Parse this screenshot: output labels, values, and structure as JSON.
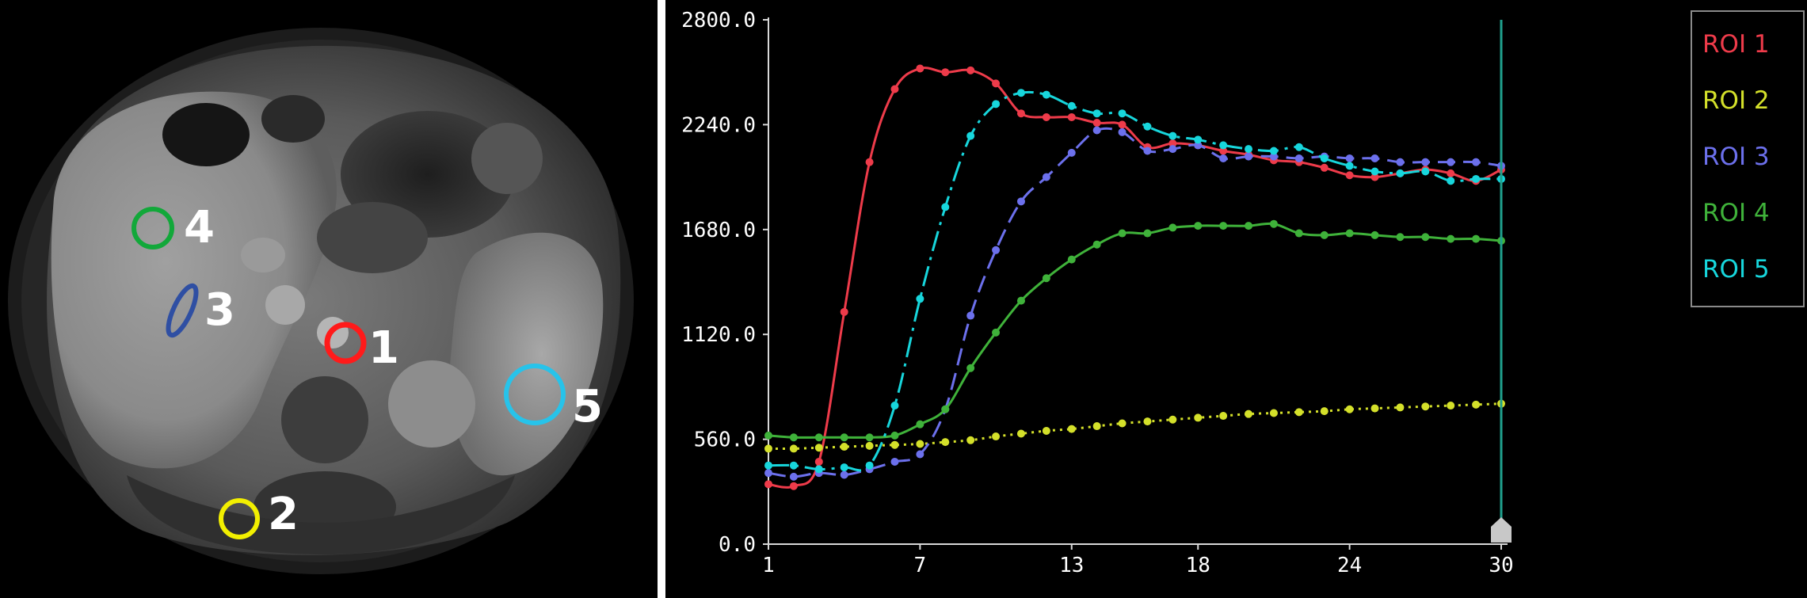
{
  "rois": [
    {
      "id": "roi-1",
      "number": "1",
      "color": "#ff1a1a"
    },
    {
      "id": "roi-2",
      "number": "2",
      "color": "#f2ef00"
    },
    {
      "id": "roi-3",
      "number": "3",
      "color": "#2f4fa3"
    },
    {
      "id": "roi-4",
      "number": "4",
      "color": "#12a83a"
    },
    {
      "id": "roi-5",
      "number": "5",
      "color": "#27c3ea"
    }
  ],
  "chart_data": {
    "type": "line",
    "title": "",
    "xlabel": "",
    "ylabel": "",
    "xlim": [
      1,
      30
    ],
    "ylim": [
      0,
      2800
    ],
    "x_ticks": [
      "1",
      "7",
      "13",
      "18",
      "24",
      "30"
    ],
    "y_ticks": [
      "0.0",
      "560.0",
      "1120.0",
      "1680.0",
      "2240.0",
      "2800.0"
    ],
    "grid": false,
    "legend_position": "top-right",
    "background": "#000000",
    "x": [
      1,
      2,
      3,
      4,
      5,
      6,
      7,
      8,
      9,
      10,
      11,
      12,
      13,
      14,
      15,
      16,
      17,
      18,
      19,
      20,
      21,
      22,
      23,
      24,
      25,
      26,
      27,
      28,
      29,
      30
    ],
    "series": [
      {
        "name": "ROI 1",
        "color": "#ee3b4a",
        "dash": "solid",
        "values": [
          320,
          310,
          440,
          1240,
          2040,
          2430,
          2540,
          2520,
          2530,
          2460,
          2300,
          2280,
          2280,
          2250,
          2240,
          2120,
          2140,
          2130,
          2100,
          2080,
          2050,
          2040,
          2010,
          1970,
          1960,
          1980,
          2000,
          1980,
          1940,
          2000
        ]
      },
      {
        "name": "ROI 2",
        "color": "#d4e02a",
        "dash": "dot",
        "values": [
          510,
          510,
          515,
          520,
          525,
          530,
          535,
          545,
          555,
          575,
          590,
          605,
          615,
          630,
          645,
          655,
          665,
          675,
          685,
          695,
          700,
          705,
          710,
          720,
          725,
          730,
          735,
          740,
          745,
          750
        ]
      },
      {
        "name": "ROI 3",
        "color": "#6c70ec",
        "dash": "dash",
        "values": [
          380,
          360,
          380,
          370,
          400,
          440,
          480,
          720,
          1220,
          1570,
          1830,
          1960,
          2090,
          2210,
          2200,
          2100,
          2110,
          2130,
          2060,
          2070,
          2070,
          2060,
          2070,
          2060,
          2060,
          2040,
          2040,
          2040,
          2040,
          2020
        ]
      },
      {
        "name": "ROI 4",
        "color": "#3fb23a",
        "dash": "solid",
        "values": [
          580,
          570,
          570,
          570,
          570,
          580,
          640,
          720,
          940,
          1130,
          1300,
          1420,
          1520,
          1600,
          1660,
          1660,
          1690,
          1700,
          1700,
          1700,
          1710,
          1660,
          1650,
          1660,
          1650,
          1640,
          1640,
          1630,
          1630,
          1620
        ]
      },
      {
        "name": "ROI 5",
        "color": "#17d6dc",
        "dash": "dashdot",
        "values": [
          420,
          420,
          400,
          410,
          420,
          740,
          1310,
          1800,
          2180,
          2350,
          2410,
          2400,
          2340,
          2300,
          2300,
          2230,
          2180,
          2160,
          2130,
          2110,
          2100,
          2120,
          2060,
          2020,
          1990,
          1980,
          1990,
          1940,
          1950,
          1950
        ]
      }
    ]
  }
}
